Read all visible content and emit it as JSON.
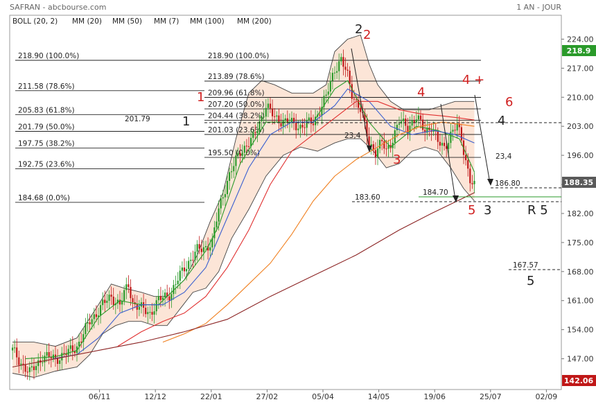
{
  "header": {
    "title": "SAFRAN - abcbourse.com",
    "period": "1 AN - JOUR"
  },
  "legend": [
    {
      "label": "BOLL (20, 2)",
      "color": "#333333"
    },
    {
      "label": "MM (20)",
      "color": "#3a5fd0"
    },
    {
      "label": "MM (50)",
      "color": "#e03030"
    },
    {
      "label": "MM (7)",
      "color": "#2a9a2a"
    },
    {
      "label": "MM (100)",
      "color": "#f08020"
    },
    {
      "label": "MM (200)",
      "color": "#8b2323"
    }
  ],
  "price_tags": {
    "top": "218.9",
    "current": "188.35",
    "bottom": "142.06"
  },
  "fibo_left": [
    {
      "price": 218.9,
      "label": "218.90 (100.0%)"
    },
    {
      "price": 211.58,
      "label": "211.58 (78.6%)"
    },
    {
      "price": 205.83,
      "label": "205.83 (61.8%)"
    },
    {
      "price": 201.79,
      "label": "201.79 (50.0%)"
    },
    {
      "price": 197.75,
      "label": "197.75 (38.2%)"
    },
    {
      "price": 192.75,
      "label": "192.75 (23.6%)"
    },
    {
      "price": 184.68,
      "label": "184.68 (0.0%)"
    }
  ],
  "fibo_mid_value": "201.79",
  "fibo_right": [
    {
      "price": 218.9,
      "label": "218.90 (100.0%)"
    },
    {
      "price": 213.89,
      "label": "213.89 (78.6%)"
    },
    {
      "price": 209.96,
      "label": "209.96 (61.8%)"
    },
    {
      "price": 207.2,
      "label": "207.20 (50.0%)"
    },
    {
      "price": 204.44,
      "label": "204.44 (38.2%)"
    },
    {
      "price": 201.03,
      "label": "201.03 (23.6%)"
    },
    {
      "price": 195.5,
      "label": "195.50 (0.0%)"
    }
  ],
  "level_labels": {
    "l186": "186.80",
    "l184": "184.70",
    "l183": "183.60",
    "l167": "167.57",
    "l23a": "23,4",
    "l23b": "23,4"
  },
  "wave_labels": {
    "w1_red": "1",
    "w1_black": "1",
    "w2_black": "2",
    "w2_red": "2",
    "w3_red": "3",
    "w3_black": "3",
    "w4_red": "4",
    "w4_red_plus": "4 +",
    "w4_black": "4",
    "w5_red": "5",
    "w6_red": "6",
    "r5": "R 5",
    "w5_black": "5"
  },
  "chart_data": {
    "type": "line",
    "title": "SAFRAN",
    "ylim": [
      142,
      227
    ],
    "y_ticks": [
      147,
      154,
      161,
      168,
      175,
      182,
      189,
      196,
      203,
      210,
      217,
      224
    ],
    "y_tick_labels": [
      "147.00",
      "154.00",
      "161.00",
      "168.00",
      "175.00",
      "182.00",
      "189.00",
      "196.00",
      "203.00",
      "210.00",
      "217.00",
      "224.00"
    ],
    "x_ticks": [
      "06/11",
      "12/12",
      "22/01",
      "27/02",
      "05/04",
      "14/05",
      "19/06",
      "25/07",
      "02/09"
    ],
    "x_tick_index": [
      16,
      42,
      68,
      94,
      120,
      146,
      172,
      198,
      224
    ],
    "n_candles": 200,
    "close_series": [
      [
        0,
        149
      ],
      [
        4,
        146
      ],
      [
        8,
        143.5
      ],
      [
        14,
        147.5
      ],
      [
        20,
        147
      ],
      [
        26,
        148.5
      ],
      [
        30,
        150
      ],
      [
        36,
        156
      ],
      [
        42,
        160
      ],
      [
        46,
        162
      ],
      [
        50,
        160
      ],
      [
        54,
        165
      ],
      [
        56,
        160.5
      ],
      [
        60,
        159
      ],
      [
        64,
        158
      ],
      [
        68,
        161
      ],
      [
        74,
        163
      ],
      [
        80,
        169
      ],
      [
        86,
        173
      ],
      [
        90,
        174
      ],
      [
        93,
        175
      ],
      [
        96,
        183
      ],
      [
        100,
        190
      ],
      [
        106,
        197
      ],
      [
        112,
        200
      ],
      [
        118,
        208
      ],
      [
        122,
        205
      ],
      [
        128,
        204
      ],
      [
        134,
        203
      ],
      [
        140,
        204
      ],
      [
        146,
        210
      ],
      [
        150,
        217
      ],
      [
        153,
        219
      ],
      [
        156,
        215
      ],
      [
        158,
        211
      ],
      [
        162,
        207
      ],
      [
        166,
        199
      ],
      [
        169,
        197
      ],
      [
        172,
        199
      ],
      [
        174,
        197
      ],
      [
        176,
        199
      ],
      [
        180,
        204
      ],
      [
        184,
        203
      ],
      [
        188,
        205
      ],
      [
        192,
        202
      ],
      [
        195,
        203
      ],
      [
        198,
        199
      ],
      [
        201,
        198
      ],
      [
        204,
        201
      ],
      [
        207,
        203
      ],
      [
        209,
        200
      ],
      [
        211,
        195
      ],
      [
        213,
        190
      ],
      [
        215,
        188.35
      ]
    ],
    "series": [
      {
        "name": "MM (7)",
        "color": "#2a9a2a",
        "values": [
          [
            6,
            147
          ],
          [
            20,
            147.5
          ],
          [
            30,
            149
          ],
          [
            40,
            157
          ],
          [
            50,
            161
          ],
          [
            60,
            160
          ],
          [
            68,
            160
          ],
          [
            80,
            166
          ],
          [
            90,
            173
          ],
          [
            96,
            179
          ],
          [
            106,
            194
          ],
          [
            118,
            204
          ],
          [
            128,
            204
          ],
          [
            140,
            204
          ],
          [
            150,
            212
          ],
          [
            156,
            214
          ],
          [
            166,
            204
          ],
          [
            176,
            198
          ],
          [
            188,
            203
          ],
          [
            198,
            202
          ],
          [
            208,
            200
          ],
          [
            215,
            192
          ]
        ]
      },
      {
        "name": "MM (20)",
        "color": "#3a5fd0",
        "values": [
          [
            19,
            147
          ],
          [
            30,
            148
          ],
          [
            40,
            152
          ],
          [
            50,
            158
          ],
          [
            60,
            160
          ],
          [
            70,
            160
          ],
          [
            80,
            163
          ],
          [
            90,
            169
          ],
          [
            100,
            181
          ],
          [
            110,
            193
          ],
          [
            120,
            201
          ],
          [
            130,
            204
          ],
          [
            140,
            204
          ],
          [
            150,
            208
          ],
          [
            156,
            212
          ],
          [
            166,
            209
          ],
          [
            176,
            203
          ],
          [
            186,
            201
          ],
          [
            196,
            202
          ],
          [
            206,
            201
          ],
          [
            215,
            199
          ]
        ]
      },
      {
        "name": "MM (50)",
        "color": "#e03030",
        "values": [
          [
            49,
            150
          ],
          [
            60,
            153.5
          ],
          [
            70,
            156
          ],
          [
            80,
            158
          ],
          [
            90,
            162
          ],
          [
            100,
            169
          ],
          [
            110,
            178
          ],
          [
            120,
            189
          ],
          [
            130,
            197
          ],
          [
            140,
            201
          ],
          [
            150,
            205
          ],
          [
            160,
            209
          ],
          [
            170,
            209
          ],
          [
            180,
            207
          ],
          [
            190,
            206
          ],
          [
            200,
            205.5
          ],
          [
            208,
            205
          ],
          [
            215,
            204.5
          ]
        ]
      },
      {
        "name": "MM (100)",
        "color": "#f08020",
        "values": [
          [
            70,
            151
          ],
          [
            80,
            153
          ],
          [
            90,
            155.5
          ],
          [
            100,
            160
          ],
          [
            110,
            165
          ],
          [
            120,
            170
          ],
          [
            130,
            177
          ],
          [
            140,
            185
          ],
          [
            150,
            191
          ],
          [
            160,
            195
          ],
          [
            170,
            198
          ],
          [
            180,
            201
          ],
          [
            190,
            203
          ],
          [
            200,
            204
          ],
          [
            208,
            203.5
          ],
          [
            215,
            203
          ]
        ]
      },
      {
        "name": "MM (200)",
        "color": "#8b2323",
        "values": [
          [
            0,
            145
          ],
          [
            20,
            147
          ],
          [
            40,
            149
          ],
          [
            60,
            151
          ],
          [
            80,
            153.5
          ],
          [
            100,
            156.5
          ],
          [
            120,
            162
          ],
          [
            140,
            167
          ],
          [
            160,
            172
          ],
          [
            180,
            178
          ],
          [
            195,
            182
          ],
          [
            205,
            184.5
          ],
          [
            215,
            187
          ]
        ]
      },
      {
        "name": "BOLL (20, 2)",
        "color": "#333333",
        "upper": [
          [
            0,
            151
          ],
          [
            10,
            151
          ],
          [
            20,
            150
          ],
          [
            30,
            152
          ],
          [
            40,
            160
          ],
          [
            46,
            165
          ],
          [
            52,
            164
          ],
          [
            60,
            163
          ],
          [
            66,
            162
          ],
          [
            72,
            162
          ],
          [
            80,
            166
          ],
          [
            86,
            172
          ],
          [
            92,
            180
          ],
          [
            98,
            187
          ],
          [
            104,
            200
          ],
          [
            110,
            211
          ],
          [
            116,
            214
          ],
          [
            122,
            213
          ],
          [
            130,
            211
          ],
          [
            140,
            211
          ],
          [
            146,
            213
          ],
          [
            150,
            221
          ],
          [
            156,
            224
          ],
          [
            162,
            225
          ],
          [
            166,
            218
          ],
          [
            170,
            213
          ],
          [
            176,
            209
          ],
          [
            182,
            207
          ],
          [
            188,
            207
          ],
          [
            194,
            207
          ],
          [
            200,
            208
          ],
          [
            206,
            209
          ],
          [
            212,
            209
          ],
          [
            215,
            209
          ]
        ],
        "lower": [
          [
            0,
            143.5
          ],
          [
            10,
            142.5
          ],
          [
            20,
            144
          ],
          [
            30,
            145
          ],
          [
            36,
            148
          ],
          [
            42,
            153
          ],
          [
            48,
            155
          ],
          [
            54,
            156
          ],
          [
            60,
            156
          ],
          [
            66,
            155
          ],
          [
            72,
            155
          ],
          [
            78,
            159
          ],
          [
            84,
            163
          ],
          [
            90,
            164
          ],
          [
            96,
            168
          ],
          [
            102,
            176
          ],
          [
            110,
            183
          ],
          [
            118,
            191
          ],
          [
            126,
            196
          ],
          [
            134,
            198
          ],
          [
            142,
            197
          ],
          [
            150,
            199
          ],
          [
            156,
            200
          ],
          [
            162,
            200
          ],
          [
            168,
            197
          ],
          [
            174,
            193
          ],
          [
            180,
            194
          ],
          [
            186,
            197
          ],
          [
            192,
            198
          ],
          [
            198,
            197
          ],
          [
            204,
            193
          ],
          [
            210,
            188
          ],
          [
            215,
            185
          ]
        ]
      }
    ],
    "legend_placement": "top-left",
    "grid": false
  }
}
